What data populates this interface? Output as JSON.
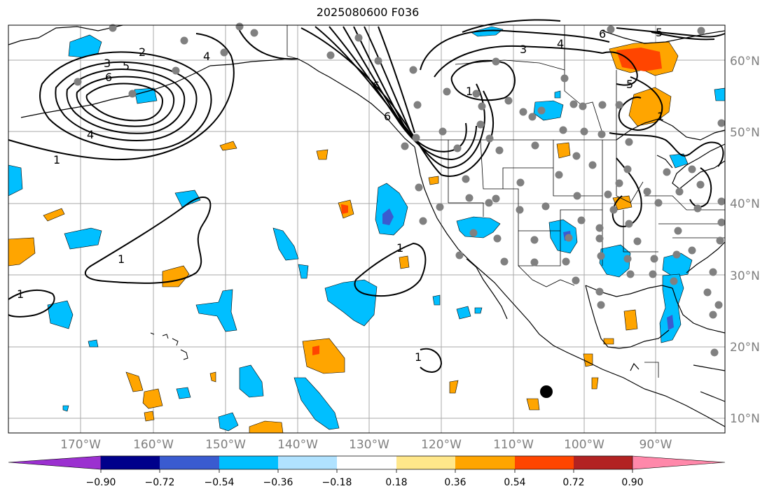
{
  "title": "2025080600 F036",
  "lon_labels": [
    "170°W",
    "160°W",
    "150°W",
    "140°W",
    "130°W",
    "120°W",
    "110°W",
    "100°W",
    "90°W"
  ],
  "lat_labels": [
    "60°N",
    "50°N",
    "40°N",
    "30°N",
    "20°N",
    "10°N"
  ],
  "colorbar": {
    "ticks": [
      "−0.90",
      "−0.72",
      "−0.54",
      "−0.36",
      "−0.18",
      "0.18",
      "0.36",
      "0.54",
      "0.72",
      "0.90"
    ],
    "colors": [
      "#9b30d0",
      "#00008b",
      "#3a5bd0",
      "#00bfff",
      "#b0e2ff",
      "#ffffff",
      "#ffe78a",
      "#ffa500",
      "#ff4500",
      "#b22222",
      "#ff88aa"
    ]
  },
  "contour_labels": [
    "6",
    "5",
    "4",
    "3",
    "2",
    "1",
    "1",
    "6",
    "3",
    "4",
    "5",
    "6",
    "1",
    "1",
    "1",
    "1",
    "4",
    "5",
    "6",
    "1"
  ],
  "map_colors": {
    "cyan": "#00bfff",
    "light_blue": "#b0e2ff",
    "orange": "#ffa500",
    "red_orange": "#ff4500",
    "blue": "#3a5bd0",
    "station_dot": "#808080"
  }
}
